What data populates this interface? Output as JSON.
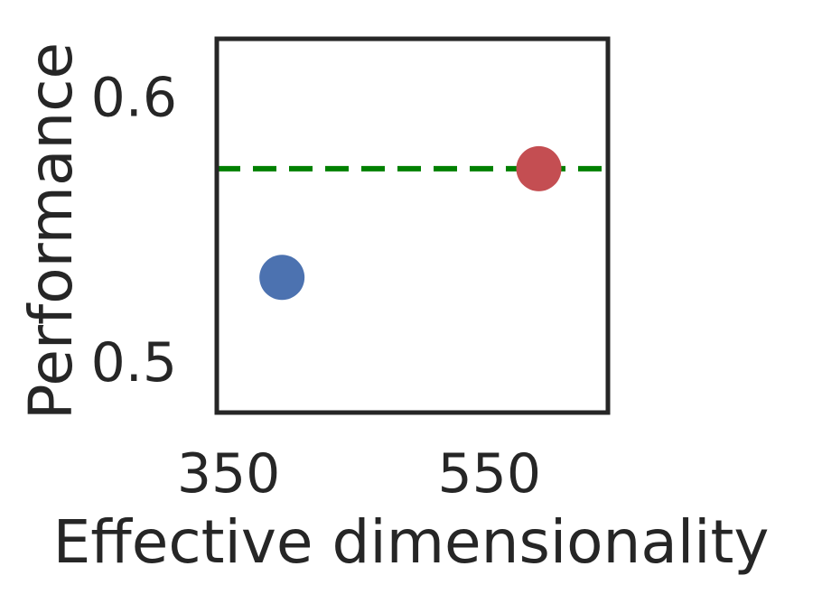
{
  "chart_data": {
    "type": "scatter",
    "title": "",
    "xlabel": "Effective dimensionality",
    "ylabel": "Performance",
    "xlim": [
      325,
      625
    ],
    "ylim": [
      0.481,
      0.622
    ],
    "xticks": [
      {
        "value": 350,
        "label": "350"
      },
      {
        "value": 550,
        "label": "550"
      }
    ],
    "yticks": [
      {
        "value": 0.5,
        "label": "0.5"
      },
      {
        "value": 0.6,
        "label": "0.6"
      }
    ],
    "grid": false,
    "points": [
      {
        "x": 375,
        "y": 0.532,
        "color": "#4C72B0"
      },
      {
        "x": 572,
        "y": 0.573,
        "color": "#C44E52"
      }
    ],
    "reference_line": {
      "y": 0.573,
      "color": "#008000",
      "style": "dashed"
    }
  }
}
